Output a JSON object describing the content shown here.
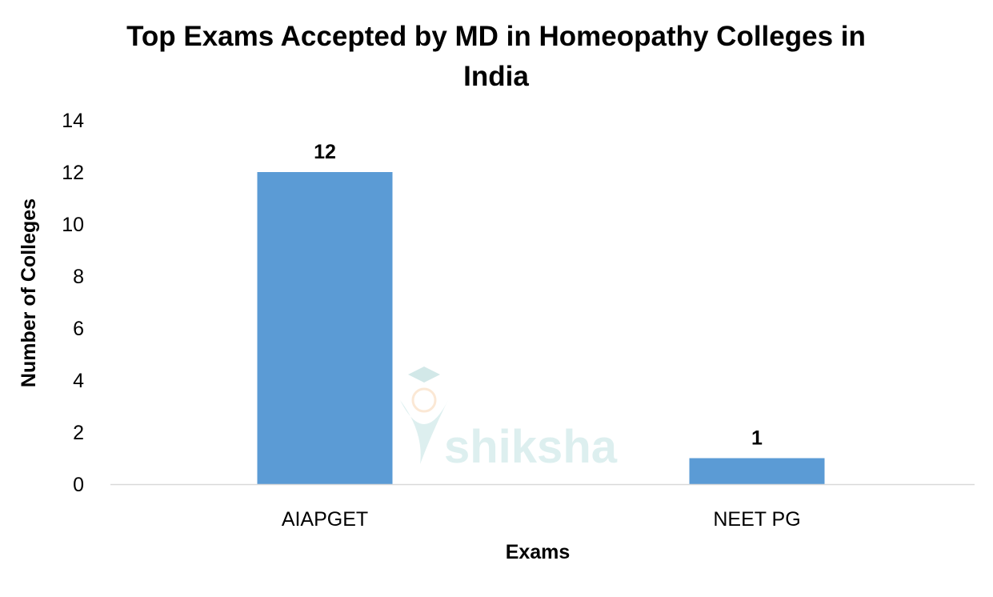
{
  "chart_data": {
    "type": "bar",
    "title_lines": [
      "Top Exams Accepted by MD in Homeopathy Colleges in",
      "India"
    ],
    "categories": [
      "AIAPGET",
      "NEET PG"
    ],
    "values": [
      12,
      1
    ],
    "data_labels": [
      "12",
      "1"
    ],
    "xlabel": "Exams",
    "ylabel": "Number of Colleges",
    "ylim": [
      0,
      14
    ],
    "yticks": [
      0,
      2,
      4,
      6,
      8,
      10,
      12,
      14
    ],
    "grid": false,
    "legend": "none",
    "bar_color": "#5b9bd5",
    "axis_color": "#d9d9d9",
    "watermark": "shiksha"
  }
}
